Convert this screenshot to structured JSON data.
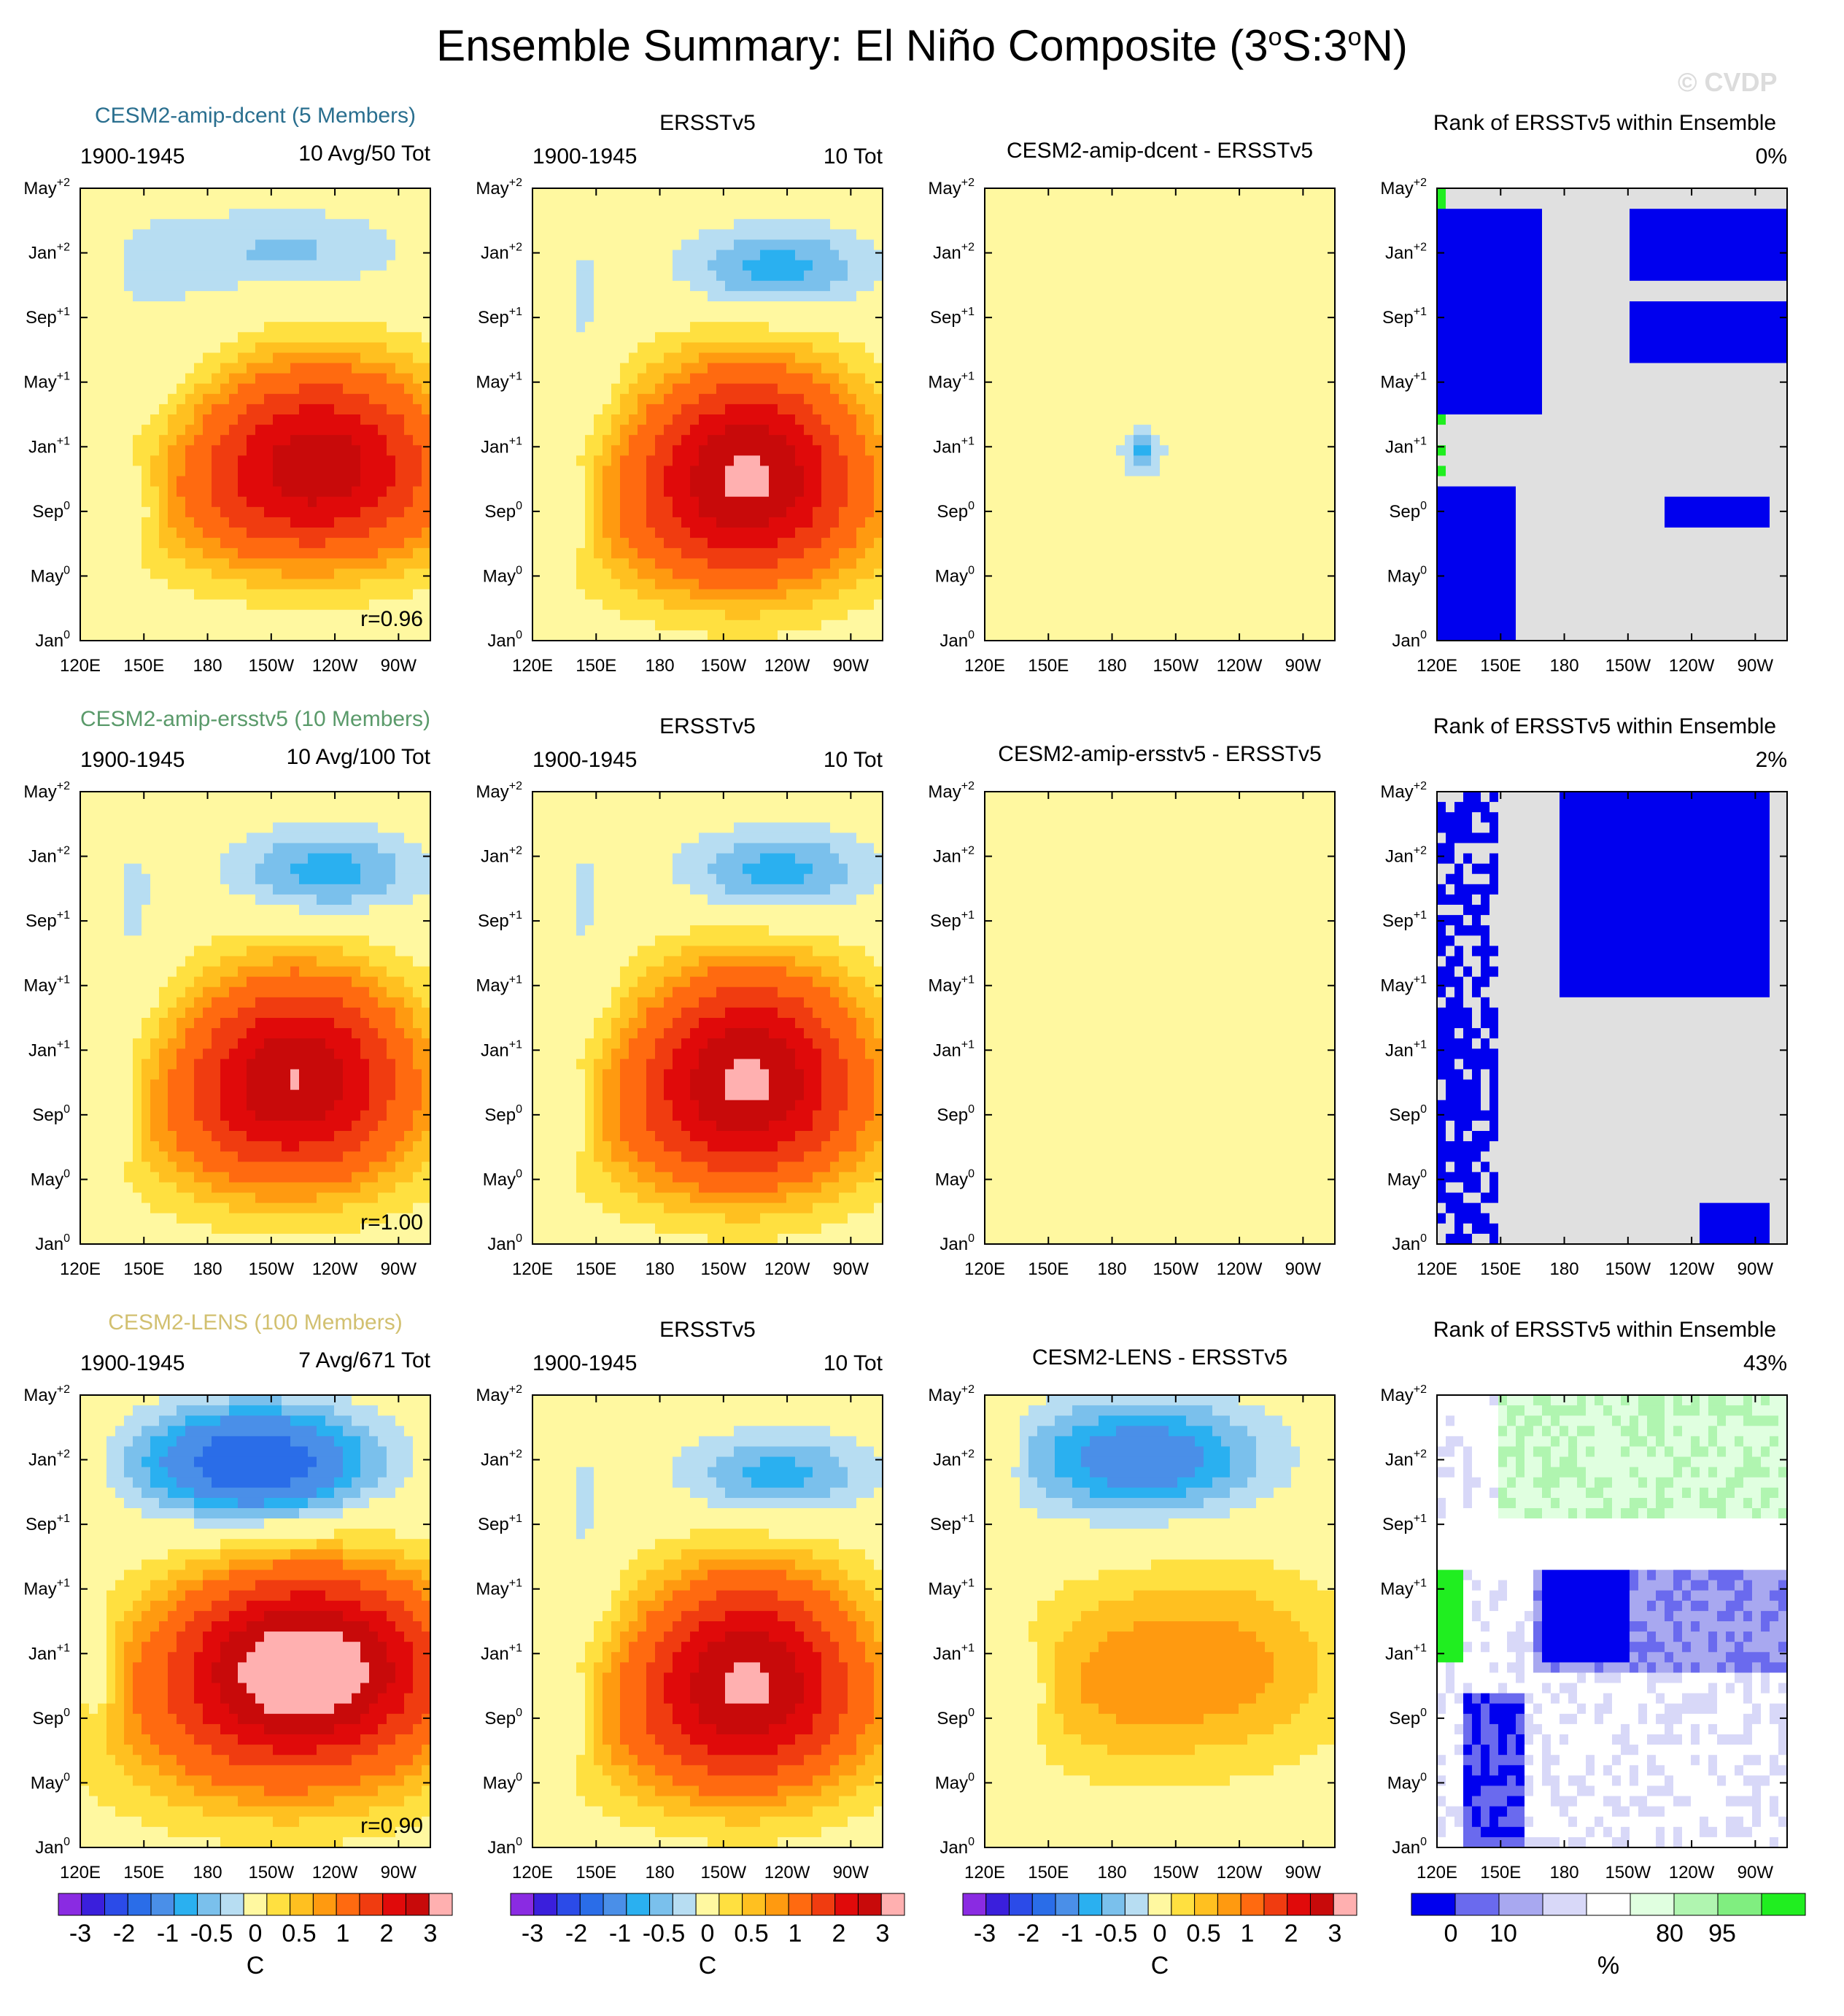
{
  "figure_title": "Ensemble Summary: El Niño Composite (3°S:3°N)",
  "title_parts": {
    "a": "Ensemble Summary: El Niño Composite (3",
    "b": "o",
    "c": "S:3",
    "d": "o",
    "e": "N)"
  },
  "watermark": "© CVDP",
  "colors": {
    "model1_title": "#2a6f8f",
    "model2_title": "#5a9a6a",
    "model3_title": "#d2c070",
    "sst_scale": [
      "#8a2be2",
      "#3a1fdc",
      "#2b4be8",
      "#2a6de8",
      "#4a8fe8",
      "#2ab0f0",
      "#7ac0ec",
      "#b7ddf2",
      "#fff8a0",
      "#ffe040",
      "#ffc020",
      "#ff9a10",
      "#ff6a10",
      "#f03c10",
      "#e00a0a",
      "#c80a0a",
      "#ffb0b0"
    ],
    "rank_scale": [
      "#0000ee",
      "#6a6aee",
      "#a8a8f0",
      "#d8d8f8",
      "#ffffff",
      "#e0ffe0",
      "#b0f5b0",
      "#80ee80",
      "#20ee20"
    ]
  },
  "rows": [
    {
      "model_title": "CESM2-amip-dcent (5 Members)",
      "model_period": "1900-1945",
      "model_count": "10 Avg/50 Tot",
      "r_value": "r=0.96",
      "obs_title": "ERSSTv5",
      "obs_period": "1900-1945",
      "obs_count": "10 Tot",
      "diff_title": "CESM2-amip-dcent - ERSSTv5",
      "rank_title": "Rank of ERSSTv5 within Ensemble",
      "rank_pct": "0%"
    },
    {
      "model_title": "CESM2-amip-ersstv5 (10 Members)",
      "model_period": "1900-1945",
      "model_count": "10 Avg/100 Tot",
      "r_value": "r=1.00",
      "obs_title": "ERSSTv5",
      "obs_period": "1900-1945",
      "obs_count": "10 Tot",
      "diff_title": "CESM2-amip-ersstv5 - ERSSTv5",
      "rank_title": "Rank of ERSSTv5 within Ensemble",
      "rank_pct": "2%"
    },
    {
      "model_title": "CESM2-LENS (100 Members)",
      "model_period": "1900-1945",
      "model_count": "7 Avg/671 Tot",
      "r_value": "r=0.90",
      "obs_title": "ERSSTv5",
      "obs_period": "1900-1945",
      "obs_count": "10 Tot",
      "diff_title": "CESM2-LENS - ERSSTv5",
      "rank_title": "Rank of ERSSTv5 within Ensemble",
      "rank_pct": "43%"
    }
  ],
  "chart_data": {
    "type": "heatmap",
    "description_x": "longitude",
    "description_y": "time (composite month)",
    "x_ticks": [
      "120E",
      "150E",
      "180",
      "150W",
      "120W",
      "90W"
    ],
    "x_tick_values_deg_east": [
      120,
      150,
      180,
      210,
      240,
      270
    ],
    "x_range_deg_east": [
      120,
      285
    ],
    "y_ticks": [
      {
        "base": "Jan",
        "sup": "0"
      },
      {
        "base": "May",
        "sup": "0"
      },
      {
        "base": "Sep",
        "sup": "0"
      },
      {
        "base": "Jan",
        "sup": "+1"
      },
      {
        "base": "May",
        "sup": "+1"
      },
      {
        "base": "Sep",
        "sup": "+1"
      },
      {
        "base": "Jan",
        "sup": "+2"
      },
      {
        "base": "May",
        "sup": "+2"
      }
    ],
    "y_range_months": [
      0,
      28
    ],
    "sst_colorbar": {
      "labels": [
        "-3",
        "-2",
        "-1",
        "-0.5",
        "0",
        "0.5",
        "1",
        "2",
        "3"
      ],
      "unit": "C"
    },
    "rank_colorbar": {
      "labels": [
        "0",
        "10",
        "80",
        "95"
      ],
      "unit": "%"
    },
    "panel_types": [
      "model ensemble mean",
      "observations",
      "difference",
      "rank percentile"
    ]
  }
}
